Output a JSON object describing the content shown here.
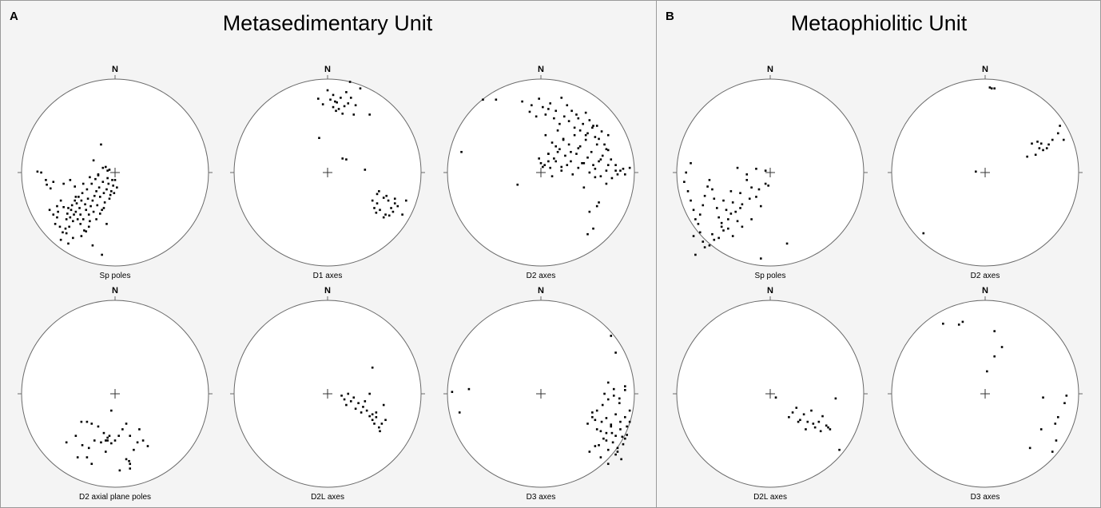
{
  "panels": [
    {
      "letter": "A",
      "title": "Metasedimentary Unit"
    },
    {
      "letter": "B",
      "title": "Metaophiolitic Unit"
    }
  ],
  "chart_data": [
    {
      "type": "scatter",
      "panel": "A",
      "north": "N",
      "caption": "Sp poles",
      "x": [
        -0.83,
        -0.79,
        -0.74,
        -0.73,
        -0.69,
        -0.66,
        -0.64,
        -0.62,
        -0.61,
        -0.59,
        -0.58,
        -0.56,
        -0.55,
        -0.53,
        -0.52,
        -0.51,
        -0.5,
        -0.49,
        -0.48,
        -0.47,
        -0.46,
        -0.45,
        -0.44,
        -0.43,
        -0.42,
        -0.41,
        -0.4,
        -0.39,
        -0.38,
        -0.37,
        -0.36,
        -0.35,
        -0.34,
        -0.33,
        -0.32,
        -0.31,
        -0.3,
        -0.29,
        -0.28,
        -0.27,
        -0.26,
        -0.25,
        -0.24,
        -0.23,
        -0.22,
        -0.21,
        -0.2,
        -0.19,
        -0.18,
        -0.17,
        -0.16,
        -0.15,
        -0.14,
        -0.13,
        -0.12,
        -0.11,
        -0.1,
        -0.09,
        -0.08,
        -0.07,
        -0.06,
        -0.05,
        -0.04,
        -0.03,
        -0.02,
        -0.01,
        0.0,
        0.02,
        -0.5,
        -0.58,
        -0.52,
        -0.45,
        -0.36,
        -0.31,
        -0.24,
        -0.14,
        -0.09,
        -0.55,
        -0.62,
        -0.66,
        -0.7,
        -0.48,
        -0.43,
        -0.34,
        -0.27,
        -0.18,
        -0.23,
        -0.13,
        -0.08,
        -0.2,
        -0.28,
        -0.37,
        -0.42,
        -0.16,
        -0.06,
        -0.12
      ],
      "y": [
        0.01,
        0.0,
        -0.08,
        -0.13,
        -0.17,
        -0.1,
        -0.55,
        -0.48,
        -0.42,
        -0.58,
        -0.3,
        -0.64,
        -0.37,
        -0.6,
        -0.5,
        -0.44,
        -0.38,
        -0.58,
        -0.48,
        -0.4,
        -0.35,
        -0.52,
        -0.45,
        -0.3,
        -0.42,
        -0.33,
        -0.5,
        -0.26,
        -0.38,
        -0.45,
        -0.3,
        -0.22,
        -0.5,
        -0.62,
        -0.34,
        -0.4,
        -0.18,
        -0.28,
        -0.45,
        -0.52,
        -0.36,
        -0.12,
        -0.3,
        -0.42,
        -0.25,
        -0.07,
        -0.2,
        -0.35,
        -0.03,
        -0.16,
        -0.26,
        0.3,
        -0.4,
        -0.1,
        -0.22,
        -0.32,
        0.06,
        -0.18,
        -0.06,
        -0.12,
        0.03,
        -0.24,
        -0.2,
        -0.08,
        -0.14,
        -0.22,
        -0.08,
        -0.16,
        -0.76,
        -0.72,
        -0.65,
        -0.7,
        -0.68,
        -0.63,
        -0.78,
        -0.88,
        -0.55,
        -0.12,
        -0.36,
        -0.45,
        -0.4,
        -0.08,
        -0.15,
        -0.12,
        -0.05,
        -0.02,
        0.13,
        0.05,
        0.02,
        -0.5,
        -0.58,
        -0.55,
        -0.26,
        -0.44,
        -0.28,
        -0.38
      ]
    },
    {
      "type": "scatter",
      "panel": "A",
      "north": "N",
      "caption": "D1 axes",
      "x": [
        -0.1,
        -0.05,
        0.0,
        0.03,
        0.06,
        0.1,
        0.14,
        0.18,
        0.2,
        0.22,
        0.25,
        0.28,
        0.3,
        0.35,
        0.12,
        0.16,
        0.08,
        0.24,
        0.06,
        0.09,
        0.62,
        0.53,
        0.68,
        0.56,
        0.65,
        0.75,
        0.7,
        0.6,
        0.84,
        0.52,
        0.6,
        0.66,
        0.72,
        0.8,
        0.55,
        0.63,
        0.72,
        0.5,
        0.48,
        0.53,
        -0.09,
        0.16,
        0.4,
        0.45,
        0.2
      ],
      "y": [
        0.79,
        0.73,
        0.88,
        0.78,
        0.83,
        0.75,
        0.8,
        0.71,
        0.86,
        0.74,
        0.8,
        0.62,
        0.72,
        0.9,
        0.68,
        0.63,
        0.76,
        0.97,
        0.7,
        0.66,
        -0.45,
        -0.33,
        -0.38,
        -0.4,
        -0.3,
        -0.36,
        -0.42,
        -0.27,
        -0.3,
        -0.43,
        -0.48,
        -0.46,
        -0.33,
        -0.45,
        -0.2,
        -0.25,
        -0.28,
        -0.38,
        -0.3,
        -0.23,
        0.37,
        0.15,
        0.03,
        0.62,
        0.14
      ]
    },
    {
      "type": "scatter",
      "panel": "A",
      "north": "N",
      "caption": "D2 axes",
      "x": [
        -0.48,
        -0.2,
        -0.12,
        -0.1,
        -0.05,
        -0.02,
        0.02,
        0.05,
        0.08,
        0.1,
        0.14,
        0.16,
        0.2,
        0.22,
        0.25,
        0.28,
        0.3,
        0.33,
        0.36,
        0.38,
        0.4,
        0.42,
        0.45,
        0.48,
        0.5,
        0.52,
        0.55,
        0.58,
        0.6,
        0.62,
        0.65,
        0.68,
        0.7,
        0.72,
        0.75,
        0.8,
        0.85,
        0.9,
        0.95,
        0.05,
        0.12,
        0.18,
        0.24,
        0.3,
        0.36,
        0.42,
        0.48,
        0.54,
        0.6,
        0.66,
        0.72,
        0.08,
        0.14,
        0.2,
        0.26,
        0.32,
        0.38,
        0.44,
        0.5,
        0.56,
        0.62,
        -0.02,
        0.04,
        0.1,
        0.16,
        0.22,
        0.28,
        0.34,
        0.4,
        0.46,
        0.52,
        0.58,
        0.64,
        0.7,
        0.76,
        0.82,
        0.88,
        0.0,
        0.08,
        0.16,
        0.24,
        0.32,
        0.4,
        0.48,
        0.56,
        0.64,
        0.72,
        0.8,
        0.6,
        0.52,
        0.62,
        0.56,
        0.5,
        -0.62,
        -0.85,
        -0.25,
        0.12,
        0.22,
        0.46,
        0.7,
        0.58,
        0.02,
        0.08,
        0.18
      ],
      "y": [
        0.78,
        0.76,
        0.65,
        0.72,
        0.6,
        0.79,
        0.7,
        0.62,
        0.68,
        0.74,
        0.58,
        0.66,
        0.52,
        0.8,
        0.6,
        0.72,
        0.55,
        0.66,
        0.48,
        0.62,
        0.58,
        0.45,
        0.52,
        0.64,
        0.42,
        0.56,
        0.48,
        0.38,
        0.5,
        0.36,
        0.44,
        0.3,
        0.25,
        0.4,
        0.14,
        0.08,
        0.02,
        -0.02,
        0.05,
        0.4,
        0.32,
        0.45,
        0.36,
        0.3,
        0.4,
        0.28,
        0.35,
        0.22,
        0.3,
        0.18,
        0.24,
        0.2,
        0.15,
        0.25,
        0.18,
        0.12,
        0.2,
        0.1,
        0.16,
        0.08,
        0.12,
        0.15,
        0.08,
        0.05,
        0.12,
        0.02,
        0.08,
        -0.02,
        0.05,
        0.1,
        0.0,
        0.04,
        -0.04,
        0.02,
        -0.06,
        -0.02,
        0.04,
        0.1,
        0.2,
        0.28,
        0.35,
        0.22,
        0.26,
        0.4,
        0.5,
        0.14,
        0.08,
        0.02,
        -0.36,
        -0.42,
        -0.32,
        -0.6,
        -0.66,
        0.78,
        0.22,
        -0.13,
        -0.04,
        0.06,
        -0.16,
        -0.12,
        -0.05,
        0.06,
        0.12,
        0.22
      ]
    },
    {
      "type": "scatter",
      "panel": "A",
      "north": "N",
      "caption": "D2 axial plane poles",
      "x": [
        -0.36,
        -0.3,
        -0.25,
        -0.18,
        -0.12,
        -0.08,
        -0.04,
        0.0,
        0.04,
        0.08,
        0.12,
        0.16,
        0.2,
        0.24,
        0.3,
        0.35,
        -0.42,
        -0.35,
        -0.28,
        -0.22,
        -0.15,
        -0.1,
        -0.06,
        -0.1,
        -0.3,
        0.12,
        0.16,
        -0.04,
        0.26,
        0.16,
        -0.52,
        -0.4,
        -0.25,
        0.05,
        0.15,
        -0.08
      ],
      "y": [
        -0.3,
        -0.3,
        -0.32,
        -0.35,
        -0.42,
        -0.5,
        -0.53,
        -0.5,
        -0.45,
        -0.38,
        -0.32,
        -0.45,
        -0.6,
        -0.52,
        -0.5,
        -0.56,
        -0.45,
        -0.55,
        -0.58,
        -0.5,
        -0.52,
        -0.5,
        -0.45,
        -0.62,
        -0.68,
        -0.7,
        -0.75,
        -0.18,
        -0.38,
        -0.8,
        -0.52,
        -0.68,
        -0.75,
        -0.82,
        -0.72,
        -0.47
      ]
    },
    {
      "type": "scatter",
      "panel": "A",
      "north": "N",
      "caption": "D2L axes",
      "x": [
        0.15,
        0.18,
        0.2,
        0.22,
        0.25,
        0.28,
        0.3,
        0.33,
        0.36,
        0.38,
        0.4,
        0.42,
        0.45,
        0.48,
        0.5,
        0.52,
        0.55,
        0.56,
        0.58,
        0.6,
        0.45,
        0.48,
        0.62,
        0.52,
        0.48
      ],
      "y": [
        -0.02,
        -0.06,
        -0.12,
        0.0,
        -0.08,
        -0.04,
        -0.16,
        -0.1,
        -0.2,
        -0.14,
        -0.08,
        -0.18,
        -0.24,
        -0.28,
        -0.32,
        -0.2,
        -0.36,
        -0.4,
        -0.32,
        -0.12,
        0.0,
        0.28,
        -0.28,
        -0.25,
        -0.22
      ]
    },
    {
      "type": "scatter",
      "panel": "A",
      "north": "N",
      "caption": "D3 axes",
      "x": [
        -0.95,
        -0.77,
        -0.87,
        0.5,
        0.6,
        0.7,
        0.75,
        0.8,
        0.85,
        0.9,
        0.95,
        0.55,
        0.6,
        0.65,
        0.7,
        0.75,
        0.8,
        0.85,
        0.9,
        0.62,
        0.67,
        0.72,
        0.77,
        0.82,
        0.87,
        0.55,
        0.58,
        0.64,
        0.7,
        0.76,
        0.82,
        0.88,
        0.92,
        0.68,
        0.72,
        0.78,
        0.84,
        0.9,
        0.66,
        0.72,
        0.78,
        0.84,
        0.9,
        0.95,
        0.52,
        0.58,
        0.64,
        0.72,
        0.8,
        0.86,
        0.92,
        0.75,
        0.8
      ],
      "y": [
        0.02,
        0.05,
        -0.2,
        -0.32,
        -0.18,
        -0.26,
        -0.35,
        -0.22,
        -0.3,
        -0.25,
        -0.18,
        -0.25,
        -0.38,
        -0.3,
        -0.42,
        -0.33,
        -0.45,
        -0.38,
        -0.48,
        -0.55,
        -0.48,
        -0.6,
        -0.52,
        -0.58,
        -0.46,
        -0.2,
        -0.28,
        -0.4,
        -0.5,
        -0.42,
        -0.62,
        -0.54,
        -0.35,
        0.0,
        0.12,
        0.05,
        -0.05,
        0.08,
        -0.12,
        -0.06,
        -0.02,
        -0.1,
        0.04,
        -0.3,
        -0.62,
        -0.56,
        -0.68,
        -0.75,
        -0.65,
        -0.7,
        -0.44,
        0.62,
        0.44
      ]
    },
    {
      "type": "scatter",
      "panel": "B",
      "north": "N",
      "caption": "Sp poles",
      "x": [
        -0.92,
        -0.88,
        -0.85,
        -0.82,
        -0.8,
        -0.77,
        -0.75,
        -0.72,
        -0.7,
        -0.67,
        -0.65,
        -0.62,
        -0.6,
        -0.57,
        -0.55,
        -0.52,
        -0.5,
        -0.47,
        -0.45,
        -0.42,
        -0.4,
        -0.37,
        -0.35,
        -0.32,
        -0.3,
        -0.25,
        -0.2,
        -0.15,
        -0.1,
        -0.05,
        -0.2,
        -0.3,
        -0.4,
        -0.5,
        -0.6,
        -0.7,
        -0.8,
        -0.9,
        -0.45,
        -0.55,
        -0.65,
        -0.75,
        -0.85,
        -0.35,
        -0.25,
        -0.15,
        -0.05,
        -0.02,
        -0.12,
        -0.22,
        -0.32,
        -0.42,
        -0.52,
        -0.62,
        -0.72,
        -0.82,
        -0.1,
        0.18
      ],
      "y": [
        -0.1,
        -0.2,
        -0.3,
        -0.4,
        -0.5,
        -0.55,
        -0.45,
        -0.35,
        -0.25,
        -0.15,
        -0.08,
        -0.18,
        -0.28,
        -0.38,
        -0.48,
        -0.58,
        -0.3,
        -0.4,
        -0.5,
        -0.2,
        -0.32,
        -0.42,
        -0.52,
        -0.22,
        -0.34,
        -0.08,
        -0.16,
        -0.26,
        -0.36,
        -0.12,
        -0.5,
        -0.58,
        -0.68,
        -0.62,
        -0.72,
        -0.8,
        -0.88,
        0.0,
        -0.6,
        -0.7,
        -0.78,
        -0.64,
        0.1,
        0.05,
        -0.02,
        0.04,
        0.02,
        -0.14,
        -0.18,
        -0.28,
        -0.38,
        -0.44,
        -0.54,
        -0.66,
        -0.74,
        -0.68,
        -0.92,
        -0.76
      ]
    },
    {
      "type": "scatter",
      "panel": "B",
      "north": "N",
      "caption": "D2 axes",
      "x": [
        0.05,
        0.07,
        0.1,
        0.5,
        0.56,
        0.62,
        0.68,
        0.72,
        0.78,
        0.66,
        0.58,
        0.54,
        0.45,
        0.6,
        0.84,
        0.8,
        -0.66,
        -0.1
      ],
      "y": [
        0.91,
        0.9,
        0.9,
        0.31,
        0.33,
        0.24,
        0.3,
        0.35,
        0.42,
        0.26,
        0.26,
        0.19,
        0.17,
        0.31,
        0.35,
        0.5,
        -0.65,
        0.01
      ]
    },
    {
      "type": "scatter",
      "panel": "B",
      "north": "N",
      "caption": "D2L axes",
      "x": [
        0.06,
        0.2,
        0.24,
        0.28,
        0.32,
        0.36,
        0.4,
        0.44,
        0.48,
        0.52,
        0.56,
        0.6,
        0.64,
        0.3,
        0.38,
        0.46,
        0.54,
        0.62,
        0.7,
        0.74
      ],
      "y": [
        -0.04,
        -0.25,
        -0.2,
        -0.15,
        -0.28,
        -0.22,
        -0.3,
        -0.18,
        -0.36,
        -0.3,
        -0.24,
        -0.34,
        -0.38,
        -0.3,
        -0.38,
        -0.32,
        -0.4,
        -0.36,
        -0.05,
        -0.6
      ]
    },
    {
      "type": "scatter",
      "panel": "B",
      "north": "N",
      "caption": "D3 axes",
      "x": [
        -0.45,
        -0.28,
        -0.24,
        0.1,
        0.18,
        0.1,
        0.02,
        0.85,
        0.62,
        0.87,
        0.78,
        0.75,
        0.6,
        0.48,
        0.76,
        0.72
      ],
      "y": [
        0.75,
        0.74,
        0.77,
        0.67,
        0.5,
        0.4,
        0.24,
        -0.1,
        -0.04,
        -0.02,
        -0.25,
        -0.32,
        -0.38,
        -0.58,
        -0.5,
        -0.62
      ]
    }
  ]
}
